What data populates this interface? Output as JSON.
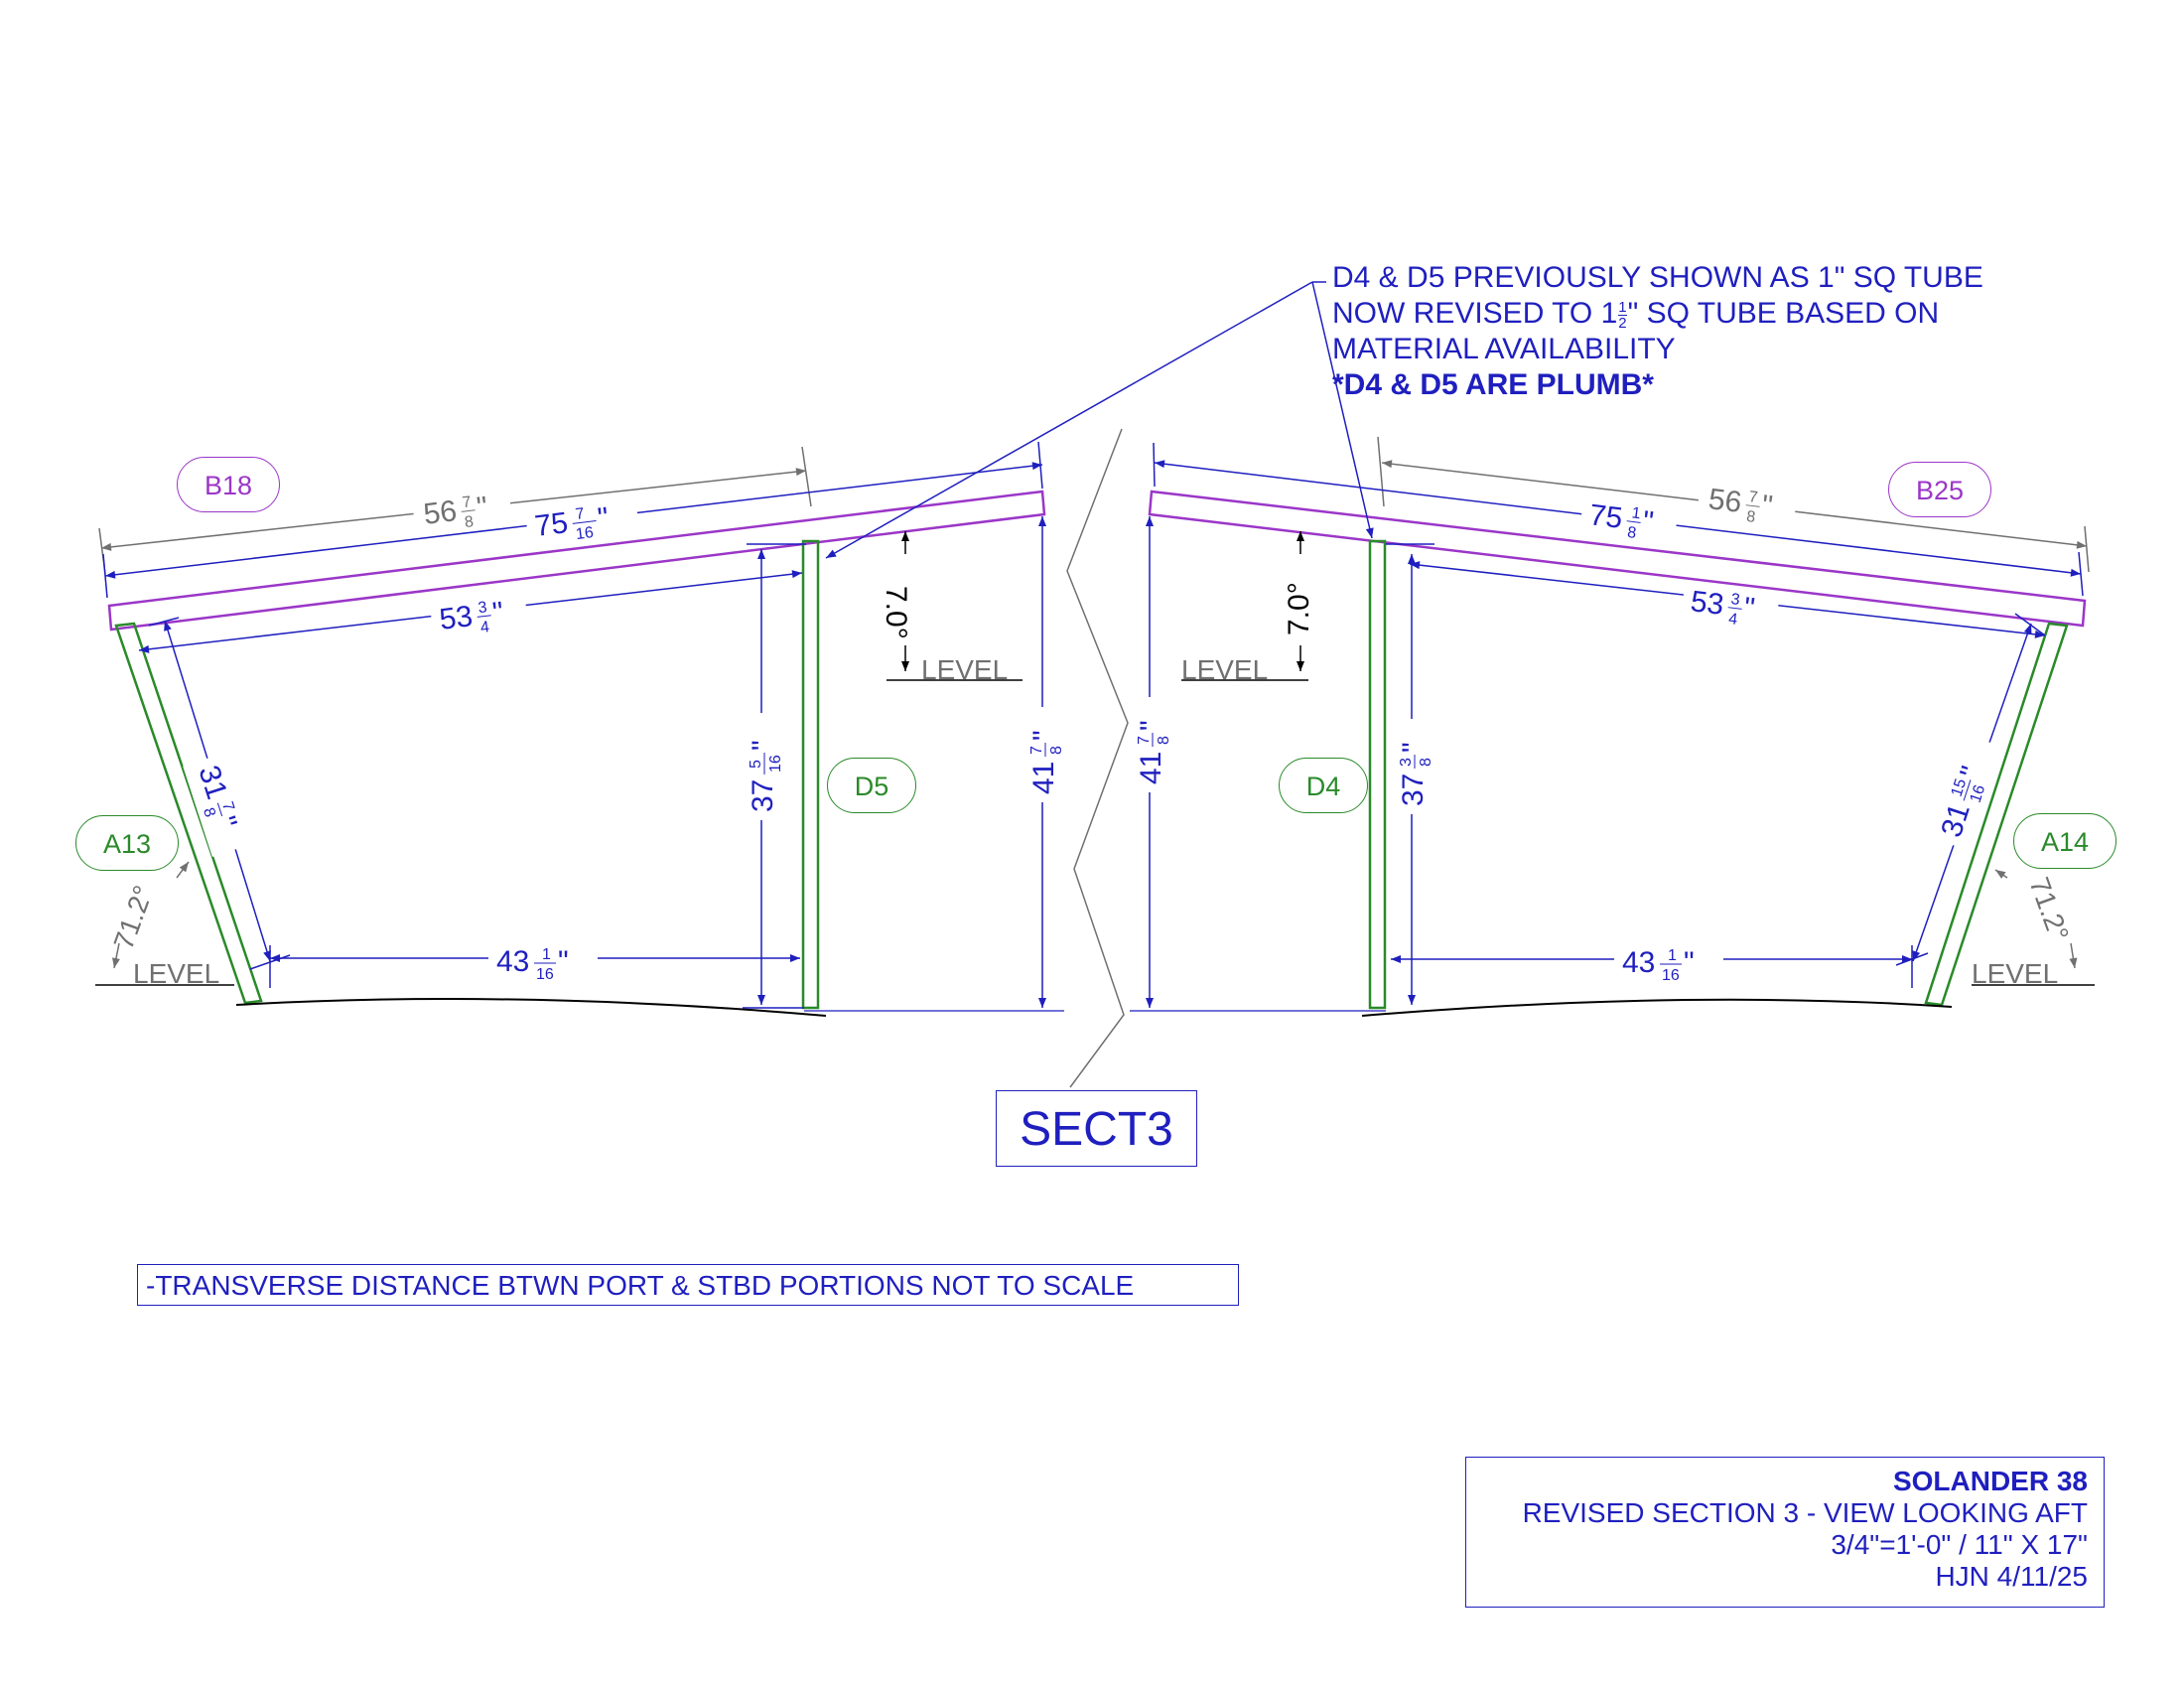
{
  "note": {
    "line1": "D4 & D5 PREVIOUSLY SHOWN AS 1\" SQ TUBE",
    "line2_pre": "NOW REVISED TO 1",
    "line2_num": "1",
    "line2_den": "2",
    "line2_post": "\" SQ TUBE BASED ON",
    "line3": "MATERIAL AVAILABILITY",
    "line4": "*D4 & D5 ARE PLUMB*"
  },
  "tags": {
    "b18": "B18",
    "b25": "B25",
    "a13": "A13",
    "a14": "A14",
    "d5": "D5",
    "d4": "D4"
  },
  "port": {
    "dim_568_whole": "56",
    "dim_568_num": "7",
    "dim_568_den": "8",
    "dim_75716_whole": "75",
    "dim_75716_num": "7",
    "dim_75716_den": "16",
    "dim_5334_whole": "53",
    "dim_5334_num": "3",
    "dim_5334_den": "4",
    "dim_3178_whole": "31",
    "dim_3178_num": "7",
    "dim_3178_den": "8",
    "dim_37516_whole": "37",
    "dim_37516_num": "5",
    "dim_37516_den": "16",
    "dim_41_whole": "41",
    "dim_41_num": "7",
    "dim_41_den": "8",
    "dim_43_whole": "43",
    "dim_43_num": "1",
    "dim_43_den": "16",
    "angle_top": "7.0°",
    "angle_side": "71.2°",
    "level1": "LEVEL",
    "level2": "LEVEL"
  },
  "stbd": {
    "dim_568_whole": "56",
    "dim_568_num": "7",
    "dim_568_den": "8",
    "dim_7518_whole": "75",
    "dim_7518_num": "1",
    "dim_7518_den": "8",
    "dim_5334_whole": "53",
    "dim_5334_num": "3",
    "dim_5334_den": "4",
    "dim_311516_whole": "31",
    "dim_311516_num": "15",
    "dim_311516_den": "16",
    "dim_3738_whole": "37",
    "dim_3738_num": "3",
    "dim_3738_den": "8",
    "dim_41_whole": "41",
    "dim_41_num": "7",
    "dim_41_den": "8",
    "dim_43_whole": "43",
    "dim_43_num": "1",
    "dim_43_den": "16",
    "angle_top": "7.0°",
    "angle_side": "71.2°",
    "level1": "LEVEL",
    "level2": "LEVEL"
  },
  "section_label": "SECT3",
  "footnote": "-TRANSVERSE DISTANCE BTWN PORT & STBD PORTIONS NOT TO SCALE",
  "titleblock": {
    "name": "SOLANDER 38",
    "title": "REVISED SECTION 3 - VIEW LOOKING AFT",
    "scale": "3/4\"=1'-0\" / 11\" X 17\"",
    "date": "HJN 4/11/25"
  },
  "colors": {
    "dimension": "#1f1fbf",
    "beam": "#9b36c8",
    "post": "#2a8a2a",
    "reference": "#707070"
  }
}
